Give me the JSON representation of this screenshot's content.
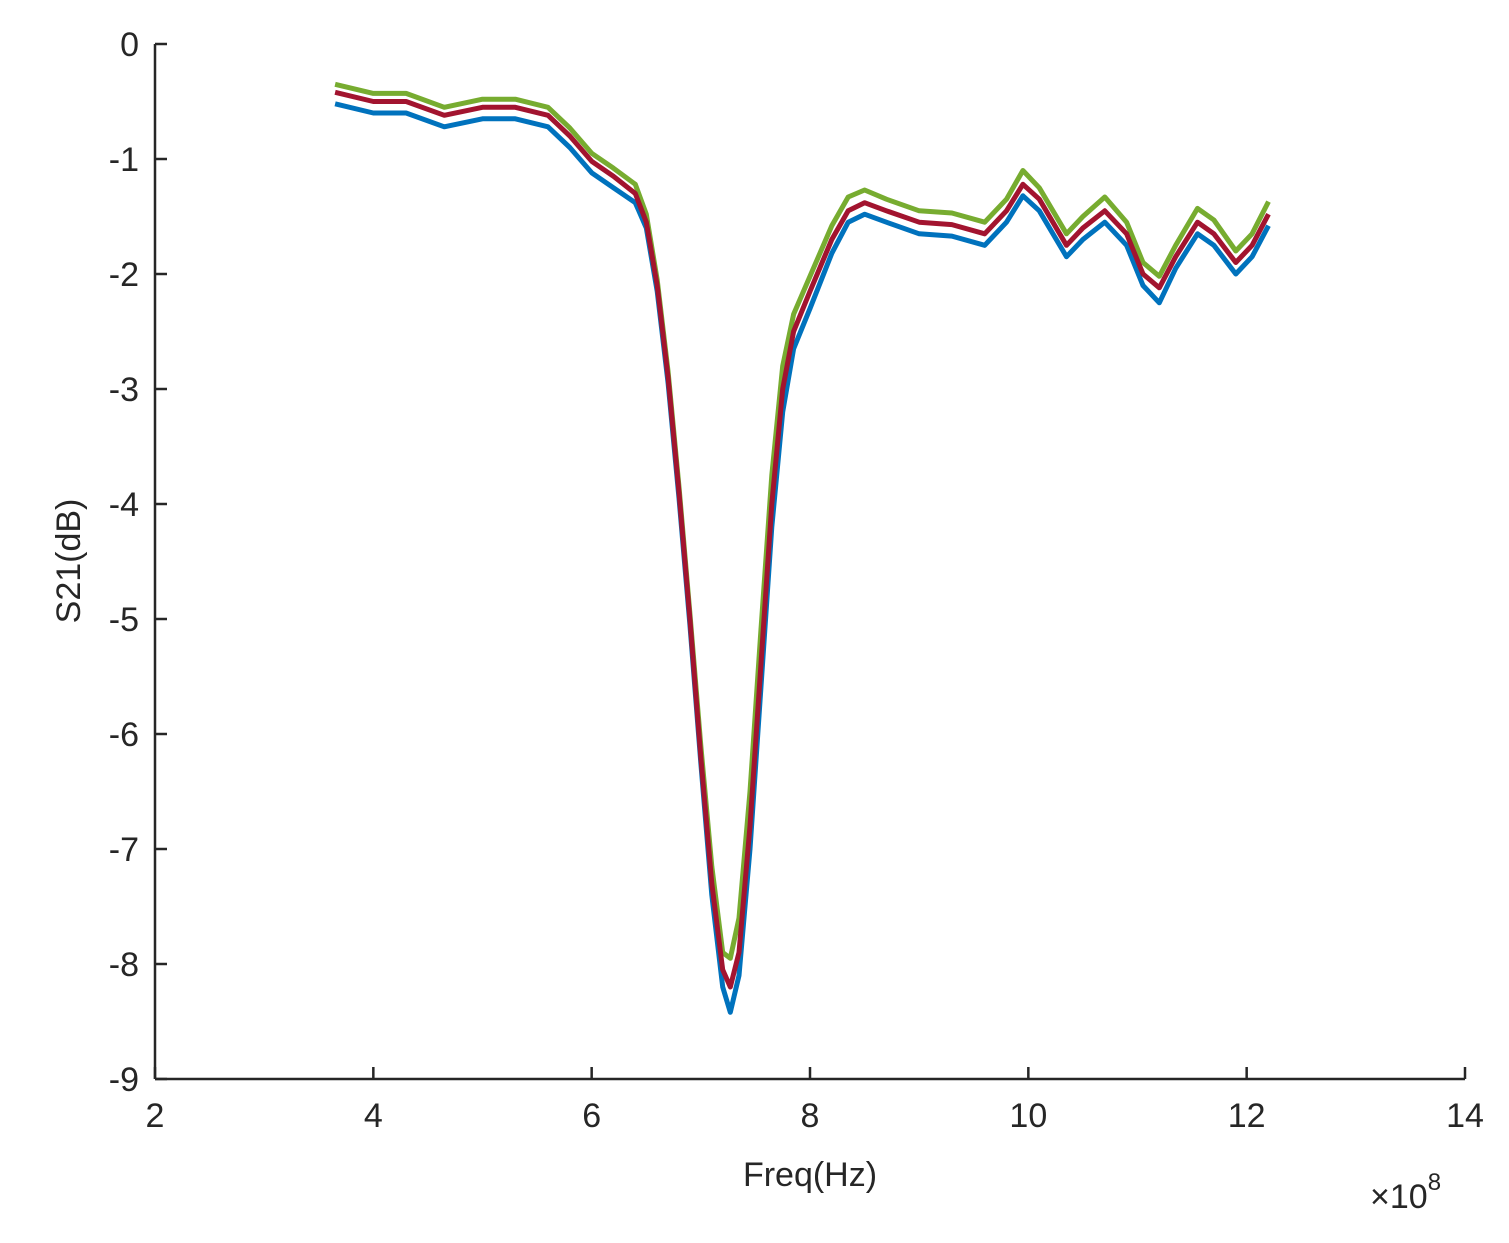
{
  "chart_data": {
    "type": "line",
    "x_label": "Freq(Hz)",
    "y_label": "S21(dB)",
    "x_multiplier": "×10",
    "x_multiplier_exponent": "8",
    "x": [
      3.65,
      4.0,
      4.3,
      4.65,
      5.0,
      5.3,
      5.6,
      5.8,
      6.0,
      6.2,
      6.4,
      6.5,
      6.6,
      6.7,
      6.8,
      6.9,
      7.0,
      7.1,
      7.2,
      7.27,
      7.35,
      7.45,
      7.55,
      7.65,
      7.75,
      7.85,
      8.0,
      8.2,
      8.35,
      8.5,
      8.7,
      9.0,
      9.3,
      9.6,
      9.8,
      9.95,
      10.1,
      10.35,
      10.5,
      10.7,
      10.9,
      11.05,
      11.2,
      11.35,
      11.55,
      11.7,
      11.9,
      12.05,
      12.2
    ],
    "series": [
      {
        "color": "#0072bd",
        "values": [
          -0.52,
          -0.6,
          -0.6,
          -0.72,
          -0.65,
          -0.65,
          -0.72,
          -0.9,
          -1.12,
          -1.25,
          -1.38,
          -1.6,
          -2.15,
          -2.95,
          -3.95,
          -5.05,
          -6.25,
          -7.4,
          -8.2,
          -8.42,
          -8.1,
          -7.0,
          -5.6,
          -4.2,
          -3.2,
          -2.65,
          -2.3,
          -1.82,
          -1.55,
          -1.48,
          -1.55,
          -1.65,
          -1.67,
          -1.75,
          -1.55,
          -1.32,
          -1.45,
          -1.85,
          -1.7,
          -1.55,
          -1.75,
          -2.1,
          -2.25,
          -1.95,
          -1.65,
          -1.75,
          -2.0,
          -1.85,
          -1.58
        ]
      },
      {
        "color": "#77ac30",
        "values": [
          -0.35,
          -0.43,
          -0.43,
          -0.55,
          -0.48,
          -0.48,
          -0.55,
          -0.73,
          -0.95,
          -1.08,
          -1.22,
          -1.48,
          -2.05,
          -2.85,
          -3.85,
          -4.95,
          -6.1,
          -7.15,
          -7.9,
          -7.95,
          -7.6,
          -6.5,
          -5.1,
          -3.75,
          -2.8,
          -2.35,
          -2.02,
          -1.58,
          -1.33,
          -1.27,
          -1.35,
          -1.45,
          -1.47,
          -1.55,
          -1.35,
          -1.1,
          -1.25,
          -1.65,
          -1.5,
          -1.33,
          -1.55,
          -1.9,
          -2.02,
          -1.75,
          -1.43,
          -1.53,
          -1.8,
          -1.65,
          -1.37
        ]
      },
      {
        "color": "#a2142f",
        "values": [
          -0.42,
          -0.5,
          -0.5,
          -0.62,
          -0.55,
          -0.55,
          -0.62,
          -0.8,
          -1.02,
          -1.15,
          -1.3,
          -1.55,
          -2.1,
          -2.9,
          -3.9,
          -5.0,
          -6.2,
          -7.3,
          -8.05,
          -8.2,
          -7.9,
          -6.8,
          -5.4,
          -4.0,
          -3.0,
          -2.5,
          -2.15,
          -1.7,
          -1.45,
          -1.38,
          -1.45,
          -1.55,
          -1.57,
          -1.65,
          -1.45,
          -1.22,
          -1.35,
          -1.75,
          -1.6,
          -1.45,
          -1.65,
          -2.0,
          -2.12,
          -1.85,
          -1.55,
          -1.65,
          -1.9,
          -1.75,
          -1.48
        ]
      }
    ],
    "xlim": [
      2,
      14
    ],
    "xticks": [
      2,
      4,
      6,
      8,
      10,
      12,
      14
    ],
    "ylim": [
      -9,
      0
    ],
    "yticks": [
      0,
      -1,
      -2,
      -3,
      -4,
      -5,
      -6,
      -7,
      -8,
      -9
    ],
    "grid": false
  }
}
